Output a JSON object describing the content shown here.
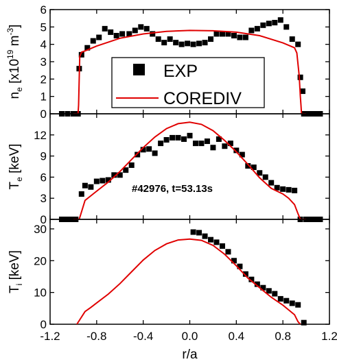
{
  "chart_data": [
    {
      "type": "scatter",
      "panel": "density",
      "ylabel": "n_e [x10^19 m^-3]",
      "ylabel_parts": {
        "symbol": "n",
        "sub": "e",
        "open": " [x10",
        "sup1": "19",
        "mid": " m",
        "sup2": "-3",
        "close": "]"
      },
      "xlim": [
        -1.2,
        1.2
      ],
      "ylim": [
        0,
        6
      ],
      "yticks": [
        "0",
        "1",
        "2",
        "3",
        "4",
        "5",
        "6"
      ],
      "legend": {
        "placement": "center",
        "entries": [
          "EXP",
          "COREDIV"
        ]
      },
      "series": [
        {
          "name": "EXP",
          "style": "square-markers",
          "color": "#000000",
          "x": [
            -1.1,
            -1.05,
            -1.0,
            -0.98,
            -0.97,
            -0.96,
            -0.95,
            -0.93,
            -0.88,
            -0.83,
            -0.78,
            -0.73,
            -0.68,
            -0.63,
            -0.58,
            -0.52,
            -0.47,
            -0.42,
            -0.37,
            -0.32,
            -0.27,
            -0.22,
            -0.17,
            -0.12,
            -0.07,
            -0.02,
            0.03,
            0.08,
            0.13,
            0.18,
            0.23,
            0.28,
            0.33,
            0.38,
            0.43,
            0.48,
            0.53,
            0.58,
            0.63,
            0.68,
            0.73,
            0.78,
            0.83,
            0.88,
            0.93,
            0.95,
            0.97,
            0.98,
            1.0,
            1.02,
            1.05,
            1.08,
            1.12
          ],
          "y": [
            0,
            0,
            0,
            0,
            0,
            0,
            2.6,
            3.4,
            3.8,
            4.2,
            4.4,
            4.9,
            4.7,
            4.5,
            4.6,
            4.6,
            4.8,
            5.0,
            4.9,
            4.6,
            4.3,
            4.1,
            4.3,
            4.1,
            4.0,
            4.05,
            4.0,
            4.05,
            4.1,
            4.3,
            4.6,
            4.6,
            4.6,
            4.5,
            4.4,
            4.4,
            4.8,
            4.9,
            5.1,
            5.2,
            5.25,
            5.4,
            5.0,
            4.3,
            4.0,
            2.1,
            1.3,
            0,
            0,
            0,
            0,
            0,
            0
          ]
        },
        {
          "name": "COREDIV",
          "style": "line",
          "color": "#e00000",
          "x": [
            -1.0,
            -0.96,
            -0.955,
            -0.95,
            -0.945,
            -0.93,
            -0.9,
            -0.8,
            -0.6,
            -0.4,
            -0.2,
            0.0,
            0.2,
            0.4,
            0.6,
            0.8,
            0.9,
            0.92,
            0.94,
            0.95,
            0.955,
            0.96,
            0.98,
            1.0
          ],
          "y": [
            0,
            0,
            0.5,
            2.0,
            3.3,
            3.55,
            3.62,
            3.9,
            4.35,
            4.6,
            4.75,
            4.8,
            4.78,
            4.7,
            4.5,
            4.08,
            3.8,
            3.5,
            2.2,
            1.0,
            0.5,
            0,
            0,
            0
          ]
        }
      ]
    },
    {
      "type": "scatter",
      "panel": "electron-temperature",
      "ylabel": "T_e [keV]",
      "ylabel_parts": {
        "symbol": "T",
        "sub": "e",
        "close": " [keV]"
      },
      "xlim": [
        -1.2,
        1.2
      ],
      "ylim": [
        0,
        15
      ],
      "yticks": [
        "0",
        "3",
        "6",
        "9",
        "12"
      ],
      "annotation": "#42976, t=53.13s",
      "series": [
        {
          "name": "EXP",
          "style": "square-markers",
          "color": "#000000",
          "x": [
            -1.1,
            -1.07,
            -1.04,
            -1.01,
            -0.98,
            -0.93,
            -0.9,
            -0.85,
            -0.8,
            -0.75,
            -0.7,
            -0.65,
            -0.6,
            -0.55,
            -0.5,
            -0.45,
            -0.4,
            -0.35,
            -0.3,
            -0.25,
            -0.2,
            -0.15,
            -0.1,
            -0.05,
            0.0,
            0.05,
            0.1,
            0.15,
            0.2,
            0.25,
            0.3,
            0.35,
            0.4,
            0.45,
            0.5,
            0.55,
            0.6,
            0.65,
            0.7,
            0.75,
            0.8,
            0.85,
            0.9,
            0.95,
            1.0,
            1.03,
            1.06,
            1.09,
            1.12
          ],
          "y": [
            0,
            0,
            0,
            0,
            0,
            3.6,
            4.8,
            4.6,
            5.4,
            5.5,
            5.6,
            6.3,
            6.3,
            7.0,
            7.7,
            9.2,
            9.9,
            10.0,
            9.4,
            10.8,
            11.3,
            11.6,
            11.6,
            11.4,
            11.9,
            10.8,
            10.8,
            11.1,
            10.2,
            11.4,
            10.4,
            10.8,
            9.8,
            9.2,
            7.6,
            7.4,
            6.6,
            6.0,
            5.2,
            4.5,
            4.3,
            4.2,
            4.1,
            0,
            0,
            0,
            0,
            0,
            0
          ]
        },
        {
          "name": "COREDIV",
          "style": "line",
          "color": "#e00000",
          "x": [
            -1.0,
            -0.95,
            -0.9,
            -0.8,
            -0.7,
            -0.6,
            -0.5,
            -0.4,
            -0.3,
            -0.2,
            -0.1,
            0.0,
            0.1,
            0.2,
            0.3,
            0.4,
            0.5,
            0.6,
            0.7,
            0.8,
            0.85,
            0.9,
            0.93,
            0.95,
            1.0
          ],
          "y": [
            0,
            0,
            2.7,
            4.0,
            5.3,
            6.8,
            8.5,
            10.2,
            11.7,
            12.9,
            13.6,
            13.8,
            13.5,
            12.6,
            11.2,
            9.6,
            7.8,
            5.9,
            4.4,
            3.6,
            3.0,
            2.1,
            0.8,
            0,
            0
          ]
        }
      ]
    },
    {
      "type": "scatter",
      "panel": "ion-temperature",
      "ylabel": "T_i [keV]",
      "ylabel_parts": {
        "symbol": "T",
        "sub": "i",
        "close": " [keV]"
      },
      "xlabel": "r/a",
      "xlim": [
        -1.2,
        1.2
      ],
      "xticks": [
        "-1.2",
        "-0.8",
        "-0.4",
        "0.0",
        "0.4",
        "0.8",
        "1.2"
      ],
      "ylim": [
        0,
        33
      ],
      "yticks": [
        "0",
        "10",
        "20",
        "30"
      ],
      "series": [
        {
          "name": "EXP",
          "style": "square-markers",
          "color": "#000000",
          "x": [
            0.03,
            0.08,
            0.13,
            0.18,
            0.23,
            0.28,
            0.33,
            0.38,
            0.43,
            0.48,
            0.53,
            0.58,
            0.63,
            0.68,
            0.73,
            0.78,
            0.83,
            0.88,
            0.93,
            0.98
          ],
          "y": [
            29.0,
            28.8,
            27.7,
            26.6,
            25.8,
            24.6,
            22.8,
            20.0,
            18.2,
            15.8,
            14.1,
            12.6,
            11.5,
            10.5,
            9.6,
            8.0,
            7.4,
            6.6,
            6.1,
            0.5
          ]
        },
        {
          "name": "COREDIV",
          "style": "line",
          "color": "#e00000",
          "x": [
            -0.97,
            -0.9,
            -0.85,
            -0.8,
            -0.7,
            -0.6,
            -0.5,
            -0.4,
            -0.3,
            -0.2,
            -0.1,
            0.0,
            0.1,
            0.2,
            0.3,
            0.4,
            0.5,
            0.6,
            0.7,
            0.8,
            0.85,
            0.9,
            0.93,
            0.95
          ],
          "y": [
            0,
            4.0,
            5.3,
            6.7,
            9.5,
            12.8,
            16.5,
            20.2,
            23.2,
            25.3,
            26.5,
            26.8,
            26.4,
            24.8,
            22.0,
            18.4,
            14.5,
            11.5,
            8.5,
            6.0,
            4.5,
            3.0,
            0.8,
            0
          ]
        }
      ]
    }
  ]
}
